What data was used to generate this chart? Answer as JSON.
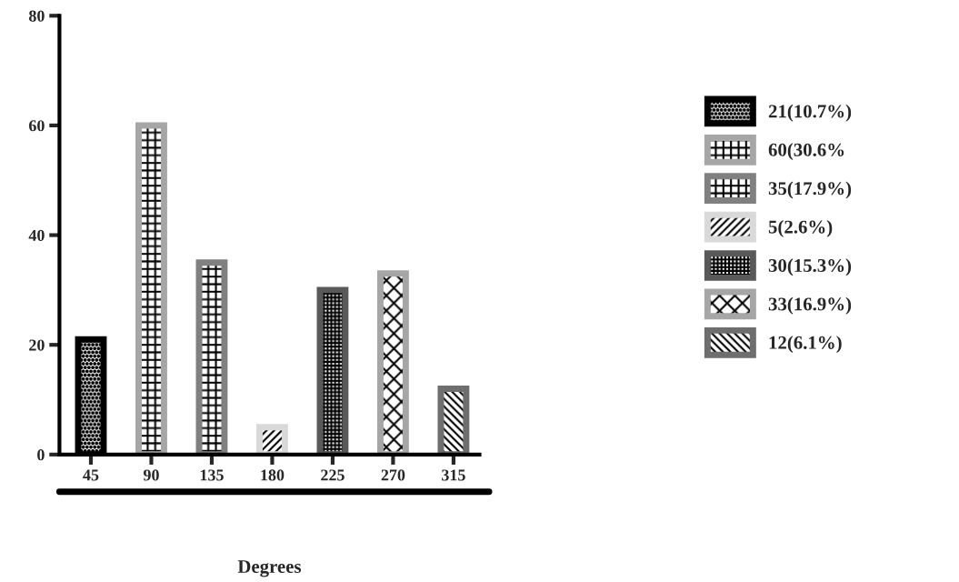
{
  "chart_data": {
    "type": "bar",
    "xlabel": "Degrees",
    "categories": [
      "45",
      "90",
      "135",
      "180",
      "225",
      "270",
      "315"
    ],
    "series": [
      {
        "name": "21(10.7%)",
        "color": "#000000",
        "values": [
          21,
          null,
          null,
          null,
          null,
          null,
          null
        ]
      },
      {
        "name": "60(30.6%",
        "color": "#a6a6a6",
        "values": [
          null,
          60,
          null,
          null,
          null,
          null,
          null
        ]
      },
      {
        "name": "35(17.9%)",
        "color": "#808080",
        "values": [
          null,
          null,
          35,
          null,
          null,
          null,
          null
        ]
      },
      {
        "name": "5(2.6%)",
        "color": "#d9d9d9",
        "values": [
          null,
          null,
          null,
          5,
          null,
          null,
          null
        ]
      },
      {
        "name": "30(15.3%)",
        "color": "#595959",
        "values": [
          null,
          null,
          null,
          null,
          30,
          null,
          null
        ]
      },
      {
        "name": "33(16.9%)",
        "color": "#a6a6a6",
        "values": [
          null,
          null,
          null,
          null,
          null,
          33,
          null
        ]
      },
      {
        "name": "12(6.1%)",
        "color": "#6e6e6e",
        "values": [
          null,
          null,
          null,
          null,
          null,
          null,
          12
        ]
      }
    ],
    "ylim": [
      0,
      80
    ],
    "yticks": [
      0,
      20,
      40,
      60,
      80
    ],
    "grid": false,
    "legend": "right"
  }
}
